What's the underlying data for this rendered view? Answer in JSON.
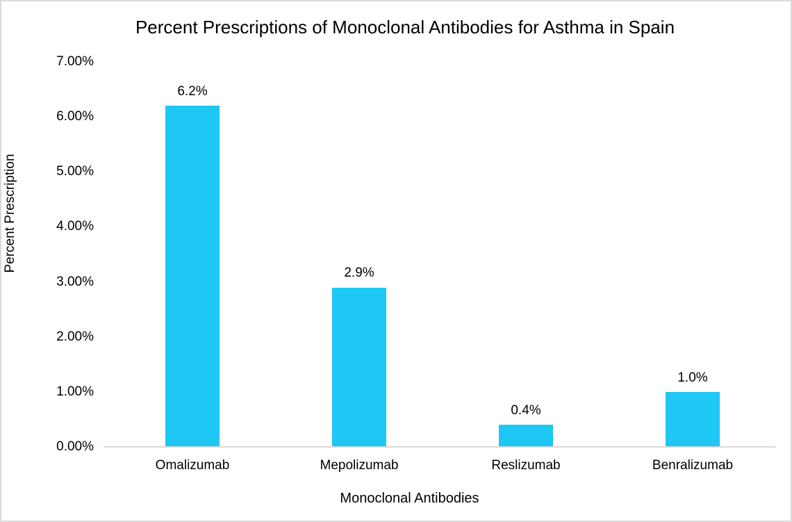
{
  "chart_data": {
    "type": "bar",
    "title": "Percent Prescriptions of Monoclonal Antibodies for Asthma in Spain",
    "xlabel": "Monoclonal Antibodies",
    "ylabel": "Percent Prescription",
    "categories": [
      "Omalizumab",
      "Mepolizumab",
      "Reslizumab",
      "Benralizumab"
    ],
    "values": [
      6.2,
      2.9,
      0.4,
      1.0
    ],
    "data_labels": [
      "6.2%",
      "2.9%",
      "0.4%",
      "1.0%"
    ],
    "y_ticks": [
      {
        "value": 0,
        "label": "0.00%"
      },
      {
        "value": 1,
        "label": "1.00%"
      },
      {
        "value": 2,
        "label": "2.00%"
      },
      {
        "value": 3,
        "label": "3.00%"
      },
      {
        "value": 4,
        "label": "4.00%"
      },
      {
        "value": 5,
        "label": "5.00%"
      },
      {
        "value": 6,
        "label": "6.00%"
      },
      {
        "value": 7,
        "label": "7.00%"
      }
    ],
    "ylim": [
      0,
      7
    ],
    "grid": false,
    "legend": false,
    "colors": {
      "bar": "#1ec7f4",
      "axis_line": "#d9d9d9",
      "text": "#000000",
      "background": "#ffffff"
    }
  }
}
